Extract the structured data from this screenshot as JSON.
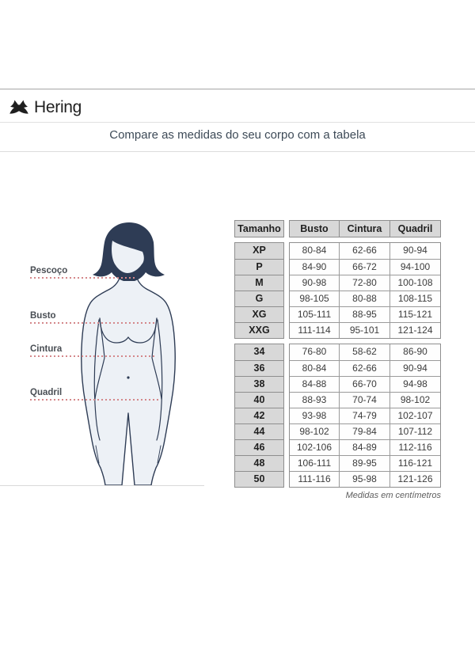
{
  "header": {
    "brand": "Hering",
    "logo_icon": "hering-crossed-fish-logo"
  },
  "title": "Compare as medidas do seu corpo com a tabela",
  "figure": {
    "labels": [
      {
        "text": "Pescoço"
      },
      {
        "text": "Busto"
      },
      {
        "text": "Cintura"
      },
      {
        "text": "Quadril"
      }
    ],
    "colors": {
      "hair_outline": "#2e3c55",
      "body_fill": "#edf1f6",
      "guide_line": "#d4878a"
    }
  },
  "table": {
    "columns": [
      "Tamanho",
      "Busto",
      "Cintura",
      "Quadril"
    ],
    "letter_sizes": [
      {
        "size": "XP",
        "values": [
          "80-84",
          "62-66",
          "90-94"
        ]
      },
      {
        "size": "P",
        "values": [
          "84-90",
          "66-72",
          "94-100"
        ]
      },
      {
        "size": "M",
        "values": [
          "90-98",
          "72-80",
          "100-108"
        ]
      },
      {
        "size": "G",
        "values": [
          "98-105",
          "80-88",
          "108-115"
        ]
      },
      {
        "size": "XG",
        "values": [
          "105-111",
          "88-95",
          "115-121"
        ]
      },
      {
        "size": "XXG",
        "values": [
          "111-114",
          "95-101",
          "121-124"
        ]
      }
    ],
    "number_sizes": [
      {
        "size": "34",
        "values": [
          "76-80",
          "58-62",
          "86-90"
        ]
      },
      {
        "size": "36",
        "values": [
          "80-84",
          "62-66",
          "90-94"
        ]
      },
      {
        "size": "38",
        "values": [
          "84-88",
          "66-70",
          "94-98"
        ]
      },
      {
        "size": "40",
        "values": [
          "88-93",
          "70-74",
          "98-102"
        ]
      },
      {
        "size": "42",
        "values": [
          "93-98",
          "74-79",
          "102-107"
        ]
      },
      {
        "size": "44",
        "values": [
          "98-102",
          "79-84",
          "107-112"
        ]
      },
      {
        "size": "46",
        "values": [
          "102-106",
          "84-89",
          "112-116"
        ]
      },
      {
        "size": "48",
        "values": [
          "106-111",
          "89-95",
          "116-121"
        ]
      },
      {
        "size": "50",
        "values": [
          "111-116",
          "95-98",
          "121-126"
        ]
      }
    ],
    "footnote": "Medidas em centímetros"
  }
}
